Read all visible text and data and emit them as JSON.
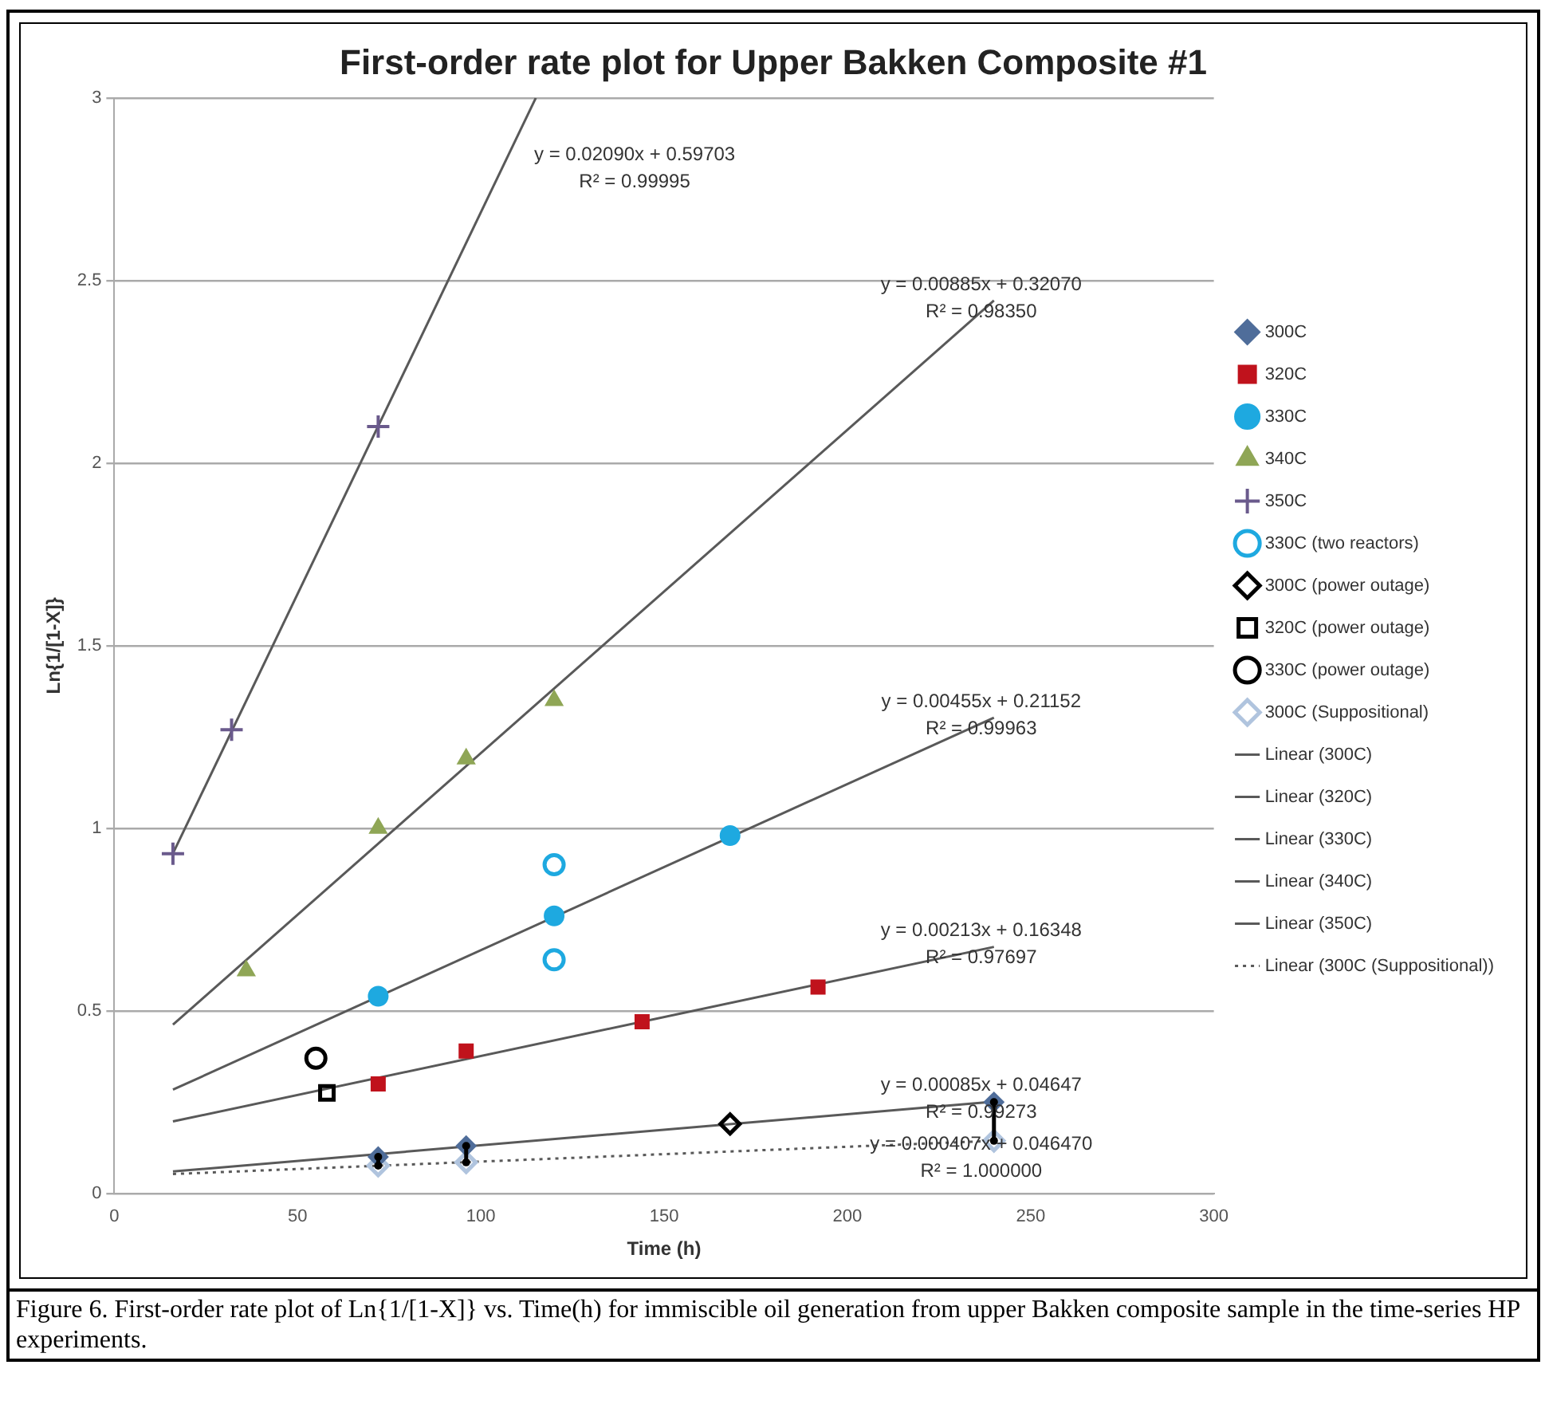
{
  "chart_data": {
    "type": "scatter",
    "title": "First-order rate plot for Upper Bakken Composite #1",
    "xlabel": "Time (h)",
    "ylabel": "Ln{1/[1-X]}",
    "xlim": [
      0,
      300
    ],
    "xticks": [
      0,
      50,
      100,
      150,
      200,
      250,
      300
    ],
    "ylim": [
      0,
      3
    ],
    "yticks": [
      0,
      0.5,
      1,
      1.5,
      2,
      2.5,
      3
    ],
    "grid": "y",
    "legend": "right",
    "series": [
      {
        "name": "300C",
        "marker": "diamond",
        "color": "#4f6d9a",
        "x": [
          72,
          96,
          240
        ],
        "values": [
          0.1,
          0.13,
          0.25
        ],
        "errors": [
          [
            0.076,
            0.1
          ],
          [
            0.085,
            0.13
          ],
          [
            0.144,
            0.25
          ]
        ]
      },
      {
        "name": "320C",
        "marker": "square",
        "color": "#c0121c",
        "x": [
          72,
          96,
          144,
          192
        ],
        "values": [
          0.3,
          0.39,
          0.47,
          0.565
        ]
      },
      {
        "name": "330C",
        "marker": "circle",
        "color": "#1ea9e0",
        "x": [
          72,
          120,
          168
        ],
        "values": [
          0.54,
          0.76,
          0.98
        ]
      },
      {
        "name": "340C",
        "marker": "triangle",
        "color": "#8fa656",
        "x": [
          36,
          72,
          96,
          120
        ],
        "values": [
          0.61,
          1.0,
          1.19,
          1.35
        ]
      },
      {
        "name": "350C",
        "marker": "cross",
        "color": "#6a5a8c",
        "x": [
          16,
          32,
          72
        ],
        "values": [
          0.93,
          1.27,
          2.1
        ]
      },
      {
        "name": "330C (two reactors)",
        "marker": "circle-open",
        "color": "#1ea9e0",
        "x": [
          120,
          120
        ],
        "values": [
          0.9,
          0.64
        ]
      },
      {
        "name": "300C (power outage)",
        "marker": "diamond-open",
        "color": "#000000",
        "x": [
          168
        ],
        "values": [
          0.19
        ]
      },
      {
        "name": "320C (power outage)",
        "marker": "square-open",
        "color": "#000000",
        "x": [
          58
        ],
        "values": [
          0.275
        ]
      },
      {
        "name": "330C (power outage)",
        "marker": "circle-open",
        "color": "#000000",
        "x": [
          55
        ],
        "values": [
          0.37
        ]
      },
      {
        "name": "300C (Suppositional)",
        "marker": "diamond-open",
        "color": "#b0c4de",
        "x": [
          72,
          96,
          240
        ],
        "values": [
          0.076,
          0.085,
          0.144
        ]
      },
      {
        "name": "Linear (300C)",
        "type": "line",
        "line_style": "solid",
        "color": "#595959",
        "x": [
          16,
          240
        ],
        "values": [
          0.06,
          0.251
        ]
      },
      {
        "name": "Linear (320C)",
        "type": "line",
        "line_style": "solid",
        "color": "#595959",
        "x": [
          16,
          240
        ],
        "values": [
          0.197,
          0.675
        ]
      },
      {
        "name": "Linear (330C)",
        "type": "line",
        "line_style": "solid",
        "color": "#595959",
        "x": [
          16,
          240
        ],
        "values": [
          0.284,
          1.303
        ]
      },
      {
        "name": "Linear (340C)",
        "type": "line",
        "line_style": "solid",
        "color": "#595959",
        "x": [
          16,
          240
        ],
        "values": [
          0.462,
          2.445
        ]
      },
      {
        "name": "Linear (350C)",
        "type": "line",
        "line_style": "solid",
        "color": "#595959",
        "x": [
          16,
          115
        ],
        "values": [
          0.931,
          3.0
        ]
      },
      {
        "name": "Linear (300C (Suppositional))",
        "type": "line",
        "line_style": "dotted",
        "color": "#595959",
        "x": [
          16,
          240
        ],
        "values": [
          0.053,
          0.144
        ]
      }
    ],
    "annotations": [
      "y = 0.00085x + 0.04647",
      "R² = 0.99273",
      "y = 0.00213x + 0.16348",
      "R² = 0.97697",
      "y = 0.00455x + 0.21152",
      "R² = 0.99963",
      "y = 0.00885x + 0.32070",
      "R² = 0.98350",
      "y = 0.02090x + 0.59703",
      "R² = 0.99995",
      "y = 0.000407x + 0.046470",
      "R² = 1.000000",
      "Figure 6. First-order rate plot of Ln{1/[1-X]} vs. Time(h) for immiscible oil generation from upper Bakken composite sample in the time-series HP experiments."
    ]
  }
}
